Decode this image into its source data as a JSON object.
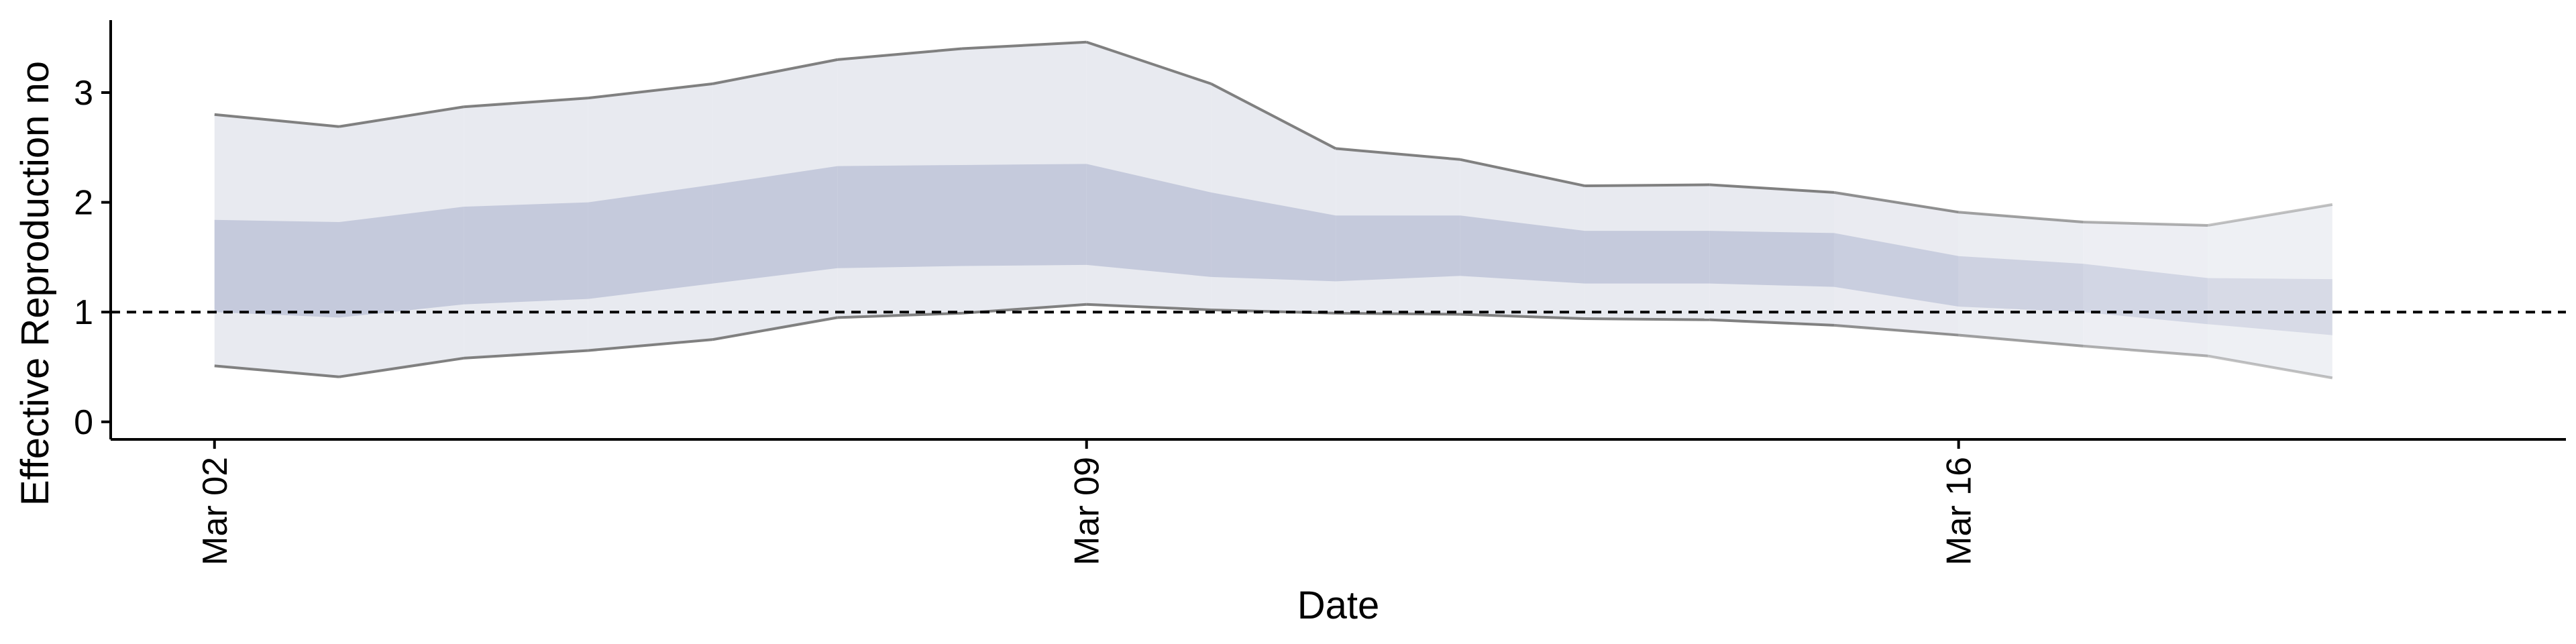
{
  "chart_data": {
    "type": "area",
    "title": "",
    "xlabel": "Date",
    "ylabel": "Effective Reproduction no",
    "x": [
      "2020-03-02",
      "2020-03-03",
      "2020-03-04",
      "2020-03-05",
      "2020-03-06",
      "2020-03-07",
      "2020-03-08",
      "2020-03-09",
      "2020-03-10",
      "2020-03-11",
      "2020-03-12",
      "2020-03-13",
      "2020-03-14",
      "2020-03-15",
      "2020-03-16",
      "2020-03-17",
      "2020-03-18",
      "2020-03-19"
    ],
    "x_ticks": [
      {
        "date": "2020-03-02",
        "label": "Mar 02"
      },
      {
        "date": "2020-03-09",
        "label": "Mar 09"
      },
      {
        "date": "2020-03-16",
        "label": "Mar 16"
      }
    ],
    "y_ticks": [
      0,
      1,
      2,
      3
    ],
    "xlim": [
      "2020-03-01T04:00",
      "2020-03-20T21:00"
    ],
    "ylim": [
      -0.16,
      3.66
    ],
    "reference_line": {
      "y": 1,
      "style": "dashed",
      "color": "#000000"
    },
    "series": [
      {
        "role": "outer_upper",
        "values": [
          2.8,
          2.69,
          2.87,
          2.95,
          3.08,
          3.3,
          3.4,
          3.46,
          3.08,
          2.49,
          2.39,
          2.15,
          2.16,
          2.09,
          1.91,
          1.82,
          1.79,
          1.98
        ]
      },
      {
        "role": "inner_upper",
        "values": [
          1.84,
          1.82,
          1.96,
          2.0,
          2.16,
          2.33,
          2.34,
          2.35,
          2.09,
          1.88,
          1.88,
          1.74,
          1.74,
          1.72,
          1.51,
          1.44,
          1.31,
          1.3
        ]
      },
      {
        "role": "inner_lower",
        "values": [
          1.0,
          0.95,
          1.07,
          1.12,
          1.26,
          1.4,
          1.42,
          1.43,
          1.32,
          1.28,
          1.33,
          1.26,
          1.26,
          1.23,
          1.05,
          1.0,
          0.89,
          0.79
        ]
      },
      {
        "role": "outer_lower",
        "values": [
          0.51,
          0.41,
          0.58,
          0.65,
          0.75,
          0.95,
          0.99,
          1.07,
          1.02,
          0.99,
          0.98,
          0.94,
          0.93,
          0.88,
          0.79,
          0.69,
          0.6,
          0.4
        ]
      }
    ],
    "grid": false,
    "legend": "none",
    "colors": {
      "outer_band": "#e8eaf0",
      "inner_band": "#c5cadc",
      "edge_line": "#808080",
      "axis": "#000000"
    }
  }
}
